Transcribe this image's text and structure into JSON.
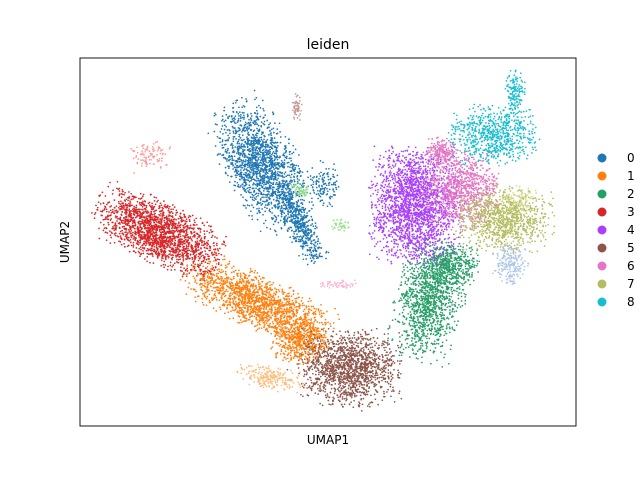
{
  "chart_data": {
    "type": "scatter",
    "title": "leiden",
    "xlabel": "UMAP1",
    "ylabel": "UMAP2",
    "legend_placement": "right",
    "grid": false,
    "series": [
      {
        "name": "0",
        "color": "#1f77b4"
      },
      {
        "name": "1",
        "color": "#ff7f0e"
      },
      {
        "name": "2",
        "color": "#279e68"
      },
      {
        "name": "3",
        "color": "#d62728"
      },
      {
        "name": "4",
        "color": "#aa40fc"
      },
      {
        "name": "5",
        "color": "#8c564b"
      },
      {
        "name": "6",
        "color": "#e377c2"
      },
      {
        "name": "7",
        "color": "#b5bd61"
      },
      {
        "name": "8",
        "color": "#17becf"
      }
    ],
    "unlabeled_colors": [
      "#aec7e8",
      "#ffbb78",
      "#98df8a",
      "#ff9896",
      "#c49c94",
      "#f7b6d2",
      "#dbdb8d"
    ]
  }
}
